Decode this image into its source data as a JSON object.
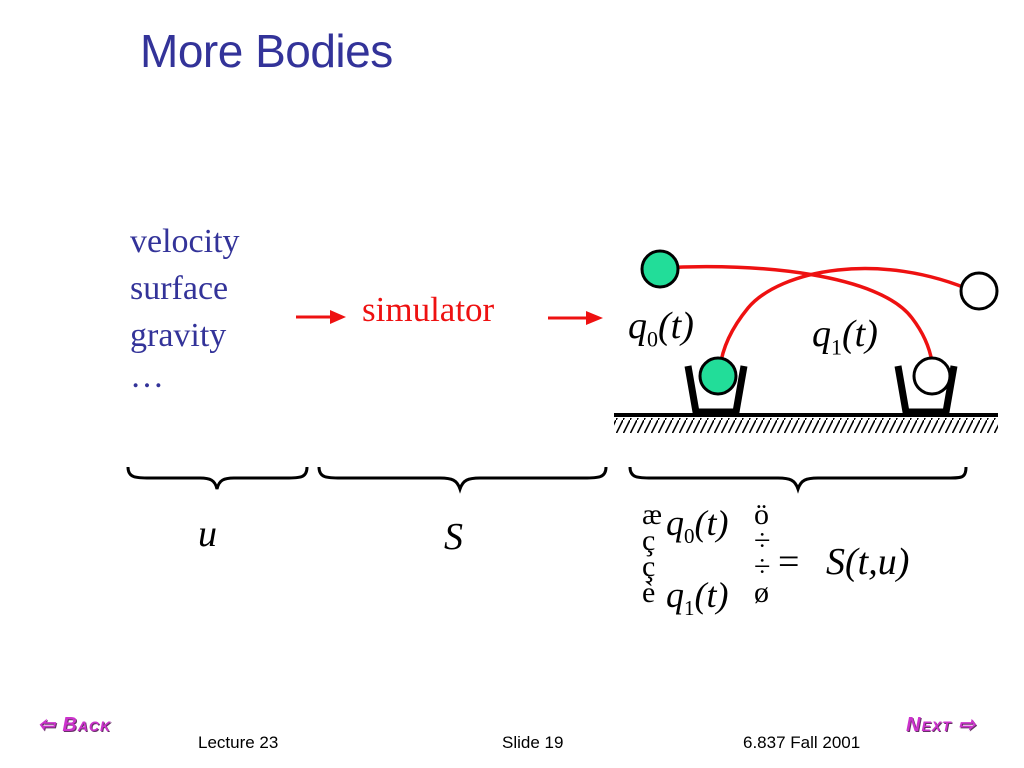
{
  "slide": {
    "title": "More Bodies"
  },
  "inputs": {
    "items": [
      "velocity",
      "surface",
      "gravity",
      "…"
    ]
  },
  "simulator": {
    "label": "simulator"
  },
  "trajectories": {
    "q0_symbol": "q",
    "q0_sub": "0",
    "q0_arg": "(t)",
    "q1_symbol": "q",
    "q1_sub": "1",
    "q1_arg": "(t)"
  },
  "braces": {
    "u_label": "u",
    "s_label": "S"
  },
  "equation": {
    "row0_symbol": "q",
    "row0_sub": "0",
    "row0_arg": "(t)",
    "row1_symbol": "q",
    "row1_sub": "1",
    "row1_arg": "(t)",
    "left_glyphs": [
      "æ",
      "ç",
      "ç",
      "è"
    ],
    "right_glyphs": [
      "ö",
      "÷",
      "÷",
      "ø"
    ],
    "equals": "=",
    "rhs": "S(t,u)"
  },
  "footer": {
    "lecture": "Lecture 23",
    "slide_number": "Slide 19",
    "course": "6.837 Fall 2001"
  },
  "nav": {
    "back_label": "Back",
    "next_label": "Next"
  },
  "colors": {
    "title": "#333399",
    "red": "#ee1111",
    "ball_filled": "#22dd99"
  }
}
